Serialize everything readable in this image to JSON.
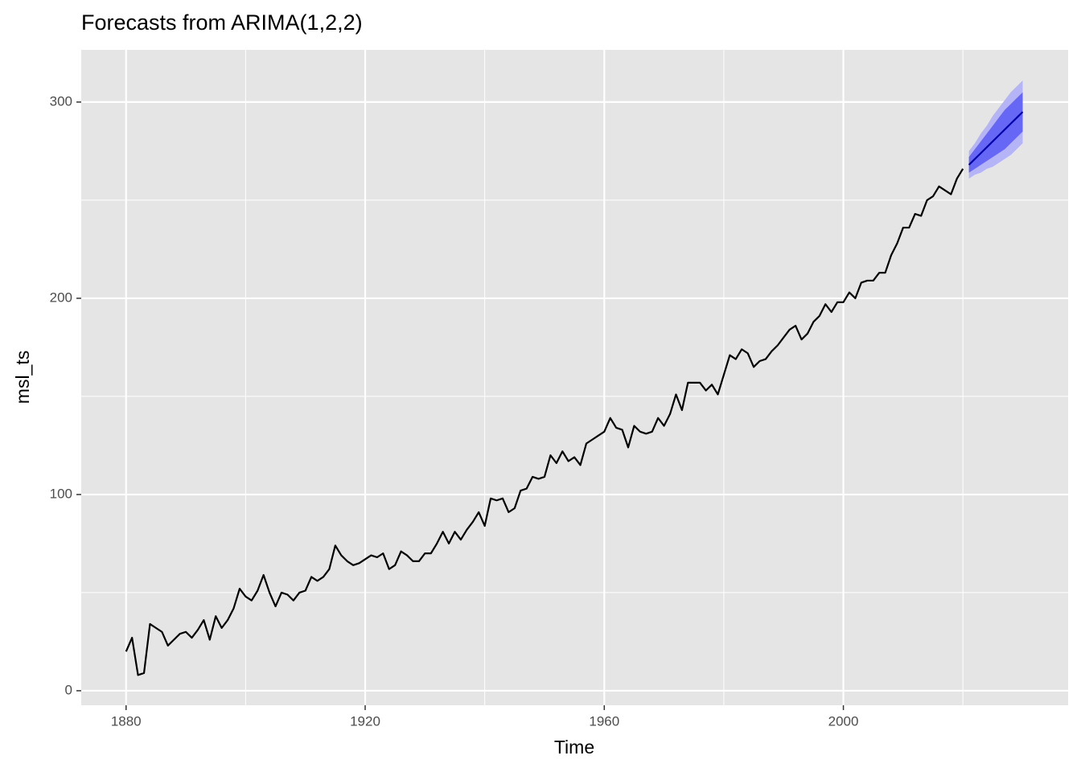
{
  "chart_data": {
    "type": "forecast",
    "title": "Forecasts from ARIMA(1,2,2)",
    "x_label": "Time",
    "y_label": "msl_ts",
    "x": [
      1880,
      1881,
      1882,
      1883,
      1884,
      1885,
      1886,
      1887,
      1888,
      1889,
      1890,
      1891,
      1892,
      1893,
      1894,
      1895,
      1896,
      1897,
      1898,
      1899,
      1900,
      1901,
      1902,
      1903,
      1904,
      1905,
      1906,
      1907,
      1908,
      1909,
      1910,
      1911,
      1912,
      1913,
      1914,
      1915,
      1916,
      1917,
      1918,
      1919,
      1920,
      1921,
      1922,
      1923,
      1924,
      1925,
      1926,
      1927,
      1928,
      1929,
      1930,
      1931,
      1932,
      1933,
      1934,
      1935,
      1936,
      1937,
      1938,
      1939,
      1940,
      1941,
      1942,
      1943,
      1944,
      1945,
      1946,
      1947,
      1948,
      1949,
      1950,
      1951,
      1952,
      1953,
      1954,
      1955,
      1956,
      1957,
      1958,
      1959,
      1960,
      1961,
      1962,
      1963,
      1964,
      1965,
      1966,
      1967,
      1968,
      1969,
      1970,
      1971,
      1972,
      1973,
      1974,
      1975,
      1976,
      1977,
      1978,
      1979,
      1980,
      1981,
      1982,
      1983,
      1984,
      1985,
      1986,
      1987,
      1988,
      1989,
      1990,
      1991,
      1992,
      1993,
      1994,
      1995,
      1996,
      1997,
      1998,
      1999,
      2000,
      2001,
      2002,
      2003,
      2004,
      2005,
      2006,
      2007,
      2008,
      2009,
      2010,
      2011,
      2012,
      2013,
      2014,
      2015,
      2016,
      2017,
      2018,
      2019,
      2020
    ],
    "values": [
      20,
      27,
      8,
      9,
      34,
      32,
      30,
      23,
      26,
      29,
      30,
      27,
      31,
      36,
      26,
      38,
      32,
      36,
      42,
      52,
      48,
      46,
      51,
      59,
      50,
      43,
      50,
      49,
      46,
      50,
      51,
      58,
      56,
      58,
      62,
      74,
      69,
      66,
      64,
      65,
      67,
      69,
      68,
      70,
      62,
      64,
      71,
      69,
      66,
      66,
      70,
      70,
      75,
      81,
      75,
      81,
      77,
      82,
      86,
      91,
      84,
      98,
      97,
      98,
      91,
      93,
      102,
      103,
      109,
      108,
      109,
      120,
      116,
      122,
      117,
      119,
      115,
      126,
      128,
      130,
      132,
      139,
      134,
      133,
      124,
      135,
      132,
      131,
      132,
      139,
      135,
      141,
      151,
      143,
      157,
      157,
      157,
      153,
      156,
      151,
      161,
      171,
      169,
      174,
      172,
      165,
      168,
      169,
      173,
      176,
      180,
      184,
      186,
      179,
      182,
      188,
      191,
      197,
      193,
      198,
      198,
      203,
      200,
      208,
      209,
      209,
      213,
      213,
      222,
      228,
      236,
      236,
      243,
      242,
      250,
      252,
      257,
      255,
      253,
      261,
      266
    ],
    "color": "#000000",
    "forecast": {
      "x": [
        2021,
        2022,
        2023,
        2024,
        2025,
        2026,
        2027,
        2028,
        2029,
        2030
      ],
      "mean": [
        268,
        271,
        274,
        277,
        280,
        283,
        286,
        289,
        292,
        295
      ],
      "lo80": [
        264,
        266,
        268,
        270,
        272,
        274,
        276,
        279,
        282,
        285
      ],
      "hi80": [
        272,
        276,
        280,
        284,
        288,
        292,
        296,
        299,
        302,
        305
      ],
      "lo95": [
        261,
        263,
        264,
        266,
        267,
        269,
        271,
        273,
        276,
        279
      ],
      "hi95": [
        275,
        279,
        284,
        288,
        293,
        297,
        301,
        305,
        308,
        311
      ],
      "color": "#0000aa",
      "color80": "#6767f5",
      "color95": "#b4b4f6"
    },
    "xlim": [
      1872.5,
      2037.6
    ],
    "ylim": [
      -7.4,
      326.6
    ],
    "xticks": [
      1880,
      1920,
      1960,
      2000
    ],
    "yticks": [
      0,
      100,
      200,
      300
    ],
    "minor_xticks": [
      1900,
      1940,
      1980,
      2020
    ],
    "minor_yticks": [
      50,
      150,
      250
    ],
    "grid": true
  }
}
